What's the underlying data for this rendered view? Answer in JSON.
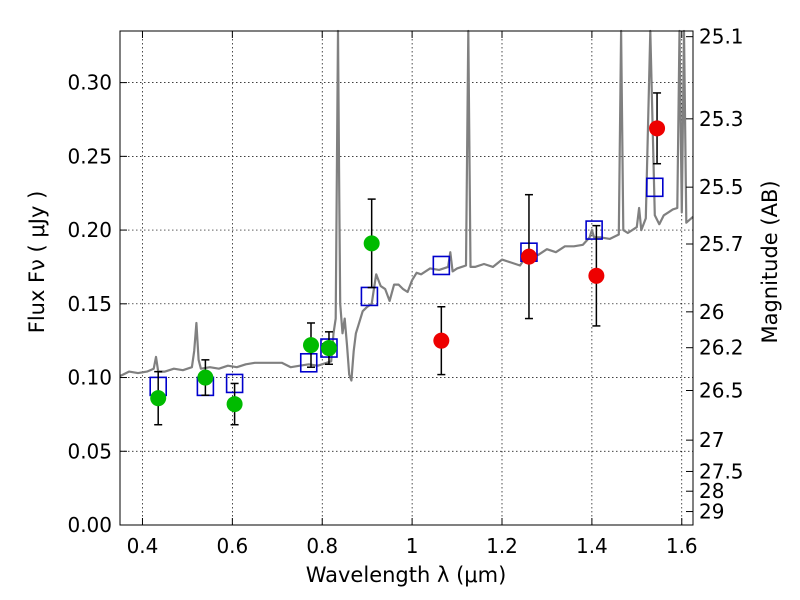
{
  "chart_data": {
    "type": "scatter",
    "xlabel": "Wavelength  λ (μm)",
    "ylabel": "Flux  Fν  ( μJy )",
    "y2label": "Magnitude (AB)",
    "xlim": [
      0.35,
      1.625
    ],
    "ylim": [
      0.0,
      0.335
    ],
    "grid": true,
    "x_ticks": [
      {
        "value": 0.4,
        "label": "0.4"
      },
      {
        "value": 0.6,
        "label": "0.6"
      },
      {
        "value": 0.8,
        "label": "0.8"
      },
      {
        "value": 1.0,
        "label": "1"
      },
      {
        "value": 1.2,
        "label": "1.2"
      },
      {
        "value": 1.4,
        "label": "1.4"
      },
      {
        "value": 1.6,
        "label": "1.6"
      }
    ],
    "y_ticks": [
      {
        "value": 0.0,
        "label": "0.00"
      },
      {
        "value": 0.05,
        "label": "0.05"
      },
      {
        "value": 0.1,
        "label": "0.10"
      },
      {
        "value": 0.15,
        "label": "0.15"
      },
      {
        "value": 0.2,
        "label": "0.20"
      },
      {
        "value": 0.25,
        "label": "0.25"
      },
      {
        "value": 0.3,
        "label": "0.30"
      }
    ],
    "mag_ticks": [
      {
        "value": 25.1,
        "label": "25.1"
      },
      {
        "value": 25.3,
        "label": "25.3"
      },
      {
        "value": 25.5,
        "label": "25.5"
      },
      {
        "value": 25.7,
        "label": "25.7"
      },
      {
        "value": 26.0,
        "label": "26"
      },
      {
        "value": 26.2,
        "label": "26.2"
      },
      {
        "value": 26.5,
        "label": "26.5"
      },
      {
        "value": 27.0,
        "label": "27"
      },
      {
        "value": 27.5,
        "label": "27.5"
      },
      {
        "value": 28.0,
        "label": "28"
      },
      {
        "value": 29.0,
        "label": "29"
      }
    ],
    "series": [
      {
        "name": "model spectrum",
        "kind": "line",
        "color": "#808080",
        "x": [
          0.35,
          0.37,
          0.39,
          0.41,
          0.425,
          0.43,
          0.435,
          0.45,
          0.47,
          0.49,
          0.51,
          0.515,
          0.52,
          0.525,
          0.53,
          0.55,
          0.57,
          0.59,
          0.61,
          0.63,
          0.65,
          0.67,
          0.69,
          0.71,
          0.73,
          0.75,
          0.77,
          0.79,
          0.81,
          0.82,
          0.825,
          0.83,
          0.835,
          0.838,
          0.84,
          0.845,
          0.85,
          0.855,
          0.86,
          0.865,
          0.87,
          0.875,
          0.88,
          0.89,
          0.9,
          0.91,
          0.915,
          0.92,
          0.93,
          0.94,
          0.95,
          0.96,
          0.97,
          0.98,
          0.99,
          1.0,
          1.01,
          1.02,
          1.04,
          1.06,
          1.08,
          1.085,
          1.09,
          1.1,
          1.11,
          1.12,
          1.125,
          1.13,
          1.14,
          1.16,
          1.18,
          1.2,
          1.22,
          1.24,
          1.26,
          1.28,
          1.3,
          1.32,
          1.34,
          1.36,
          1.38,
          1.395,
          1.4,
          1.405,
          1.42,
          1.44,
          1.46,
          1.465,
          1.47,
          1.48,
          1.5,
          1.505,
          1.51,
          1.52,
          1.53,
          1.54,
          1.55,
          1.56,
          1.57,
          1.58,
          1.59,
          1.595,
          1.6,
          1.605,
          1.61,
          1.625
        ],
        "y": [
          0.101,
          0.104,
          0.103,
          0.104,
          0.106,
          0.114,
          0.104,
          0.104,
          0.106,
          0.105,
          0.107,
          0.118,
          0.137,
          0.112,
          0.106,
          0.107,
          0.106,
          0.108,
          0.107,
          0.109,
          0.11,
          0.11,
          0.11,
          0.11,
          0.107,
          0.108,
          0.109,
          0.108,
          0.11,
          0.111,
          0.13,
          0.14,
          0.335,
          0.22,
          0.15,
          0.13,
          0.14,
          0.122,
          0.102,
          0.098,
          0.118,
          0.13,
          0.135,
          0.145,
          0.148,
          0.15,
          0.16,
          0.17,
          0.162,
          0.16,
          0.152,
          0.163,
          0.163,
          0.16,
          0.158,
          0.166,
          0.171,
          0.17,
          0.174,
          0.173,
          0.175,
          0.185,
          0.172,
          0.174,
          0.175,
          0.176,
          0.335,
          0.175,
          0.175,
          0.177,
          0.175,
          0.18,
          0.178,
          0.176,
          0.185,
          0.183,
          0.187,
          0.185,
          0.189,
          0.189,
          0.19,
          0.195,
          0.2,
          0.195,
          0.195,
          0.194,
          0.197,
          0.335,
          0.2,
          0.198,
          0.202,
          0.215,
          0.2,
          0.208,
          0.335,
          0.21,
          0.204,
          0.21,
          0.212,
          0.214,
          0.215,
          0.335,
          0.212,
          0.335,
          0.205,
          0.209
        ]
      },
      {
        "name": "model photometry",
        "kind": "open-square",
        "color": "#0000cc",
        "x": [
          0.435,
          0.54,
          0.605,
          0.77,
          0.815,
          0.905,
          1.065,
          1.26,
          1.405,
          1.54
        ],
        "y": [
          0.094,
          0.094,
          0.096,
          0.11,
          0.12,
          0.155,
          0.176,
          0.185,
          0.2,
          0.229
        ]
      },
      {
        "name": "observed (green)",
        "kind": "filled-circle",
        "color": "#00bb00",
        "x": [
          0.435,
          0.54,
          0.605,
          0.775,
          0.815,
          0.91
        ],
        "y": [
          0.086,
          0.1,
          0.082,
          0.122,
          0.12,
          0.191
        ],
        "yerr": [
          0.018,
          0.012,
          0.014,
          0.015,
          0.011,
          0.03
        ]
      },
      {
        "name": "observed (red)",
        "kind": "filled-circle",
        "color": "#ee0000",
        "x": [
          1.065,
          1.26,
          1.41,
          1.545
        ],
        "y": [
          0.125,
          0.182,
          0.169,
          0.269
        ],
        "yerr": [
          0.023,
          0.042,
          0.034,
          0.024
        ]
      }
    ]
  }
}
